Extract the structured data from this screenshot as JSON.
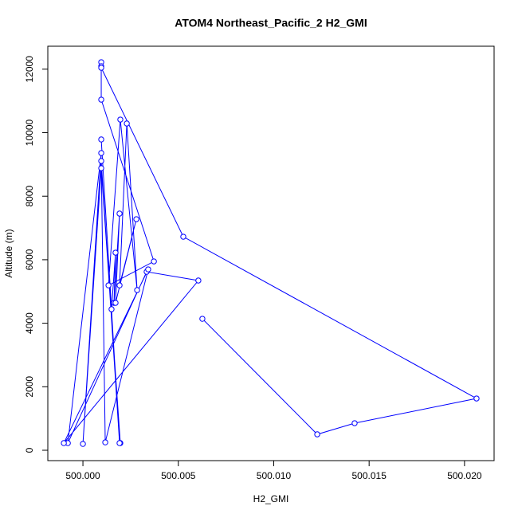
{
  "chart_data": {
    "type": "line",
    "title": "ATOM4 Northeast_Pacific_2 H2_GMI",
    "x_label": "H2_GMI",
    "y_label": "Altitude (m)",
    "color": "#0000ff",
    "x": [
      500.00196,
      500.00096,
      500.0,
      500.00096,
      499.99921,
      500.00334,
      500.00605,
      499.999,
      500.00342,
      500.00117,
      500.00096,
      500.00192,
      500.00096,
      500.0015,
      500.00171,
      500.00163,
      500.00192,
      500.00171,
      500.0028,
      500.00192,
      500.0023,
      500.00284,
      500.00196,
      500.00134,
      500.00372,
      500.00096,
      500.00096,
      500.00096,
      500.00096,
      500.00526,
      500.02063,
      500.01424,
      500.01228,
      500.00626
    ],
    "values": [
      226,
      8883,
      200,
      9360,
      226,
      5621,
      5345,
      226,
      5696,
      250,
      9109,
      226,
      9787,
      4442,
      6223,
      4642,
      7453,
      4642,
      7277,
      5194,
      10289,
      5044,
      10414,
      5194,
      5947,
      11041,
      12220,
      12095,
      12045,
      6725,
      1631,
      853,
      502,
      4140
    ],
    "xlim": [
      499.99816,
      500.02155
    ],
    "ylim": [
      -326,
      12723
    ],
    "xticks": [
      {
        "value": 500.0,
        "label": "500.000"
      },
      {
        "value": 500.005,
        "label": "500.005"
      },
      {
        "value": 500.01,
        "label": "500.010"
      },
      {
        "value": 500.015,
        "label": "500.015"
      },
      {
        "value": 500.02,
        "label": "500.020"
      }
    ],
    "yticks": [
      0,
      2000,
      4000,
      6000,
      8000,
      10000,
      12000
    ]
  }
}
